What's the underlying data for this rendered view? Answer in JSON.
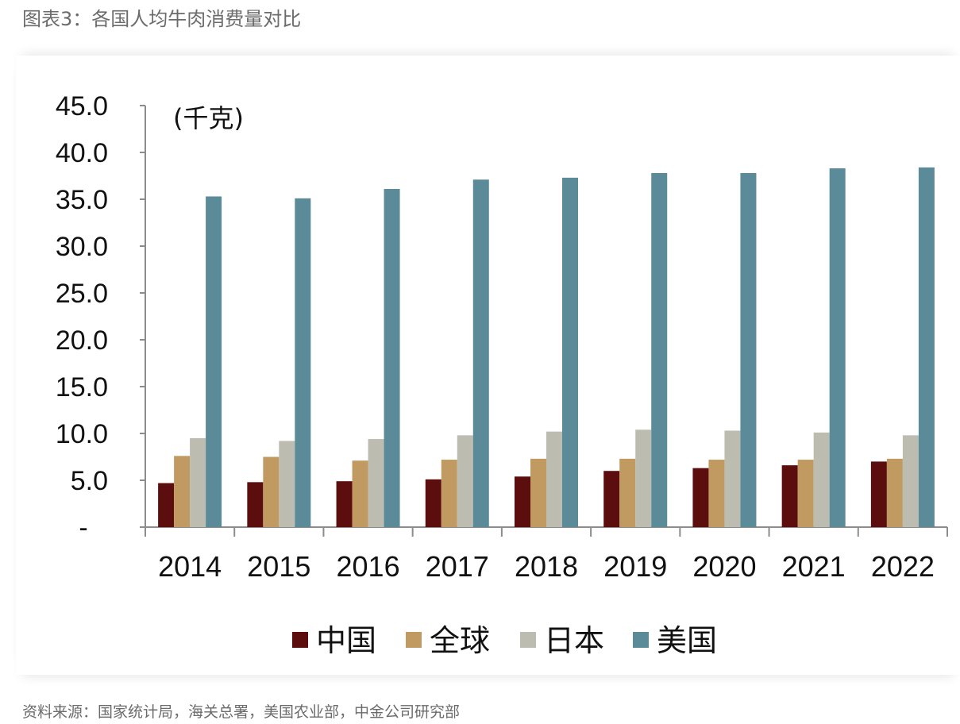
{
  "figure_title": "图表3：各国人均牛肉消费量对比",
  "source": "资料来源：国家统计局，海关总署，美国农业部，中金公司研究部",
  "chart_data": {
    "type": "bar",
    "title": "各国人均牛肉消费量对比",
    "unit_label": "(千克)",
    "xlabel": "",
    "ylabel": "",
    "categories": [
      "2014",
      "2015",
      "2016",
      "2017",
      "2018",
      "2019",
      "2020",
      "2021",
      "2022"
    ],
    "ylim": [
      0,
      45
    ],
    "yticks": [
      0,
      5,
      10,
      15,
      20,
      25,
      30,
      35,
      40,
      45
    ],
    "ytick_labels": [
      "-",
      "5.0",
      "10.0",
      "15.0",
      "20.0",
      "25.0",
      "30.0",
      "35.0",
      "40.0",
      "45.0"
    ],
    "grid": false,
    "legend_position": "bottom",
    "series": [
      {
        "name": "中国",
        "color": "#5c0e0e",
        "values": [
          4.7,
          4.8,
          4.9,
          5.1,
          5.4,
          6.0,
          6.3,
          6.6,
          7.0
        ]
      },
      {
        "name": "全球",
        "color": "#c19a62",
        "values": [
          7.6,
          7.5,
          7.1,
          7.2,
          7.3,
          7.3,
          7.2,
          7.2,
          7.3
        ]
      },
      {
        "name": "日本",
        "color": "#bcbcb0",
        "values": [
          9.5,
          9.2,
          9.4,
          9.8,
          10.2,
          10.4,
          10.3,
          10.1,
          9.8
        ]
      },
      {
        "name": "美国",
        "color": "#5b8a99",
        "values": [
          35.3,
          35.1,
          36.1,
          37.1,
          37.3,
          37.8,
          37.8,
          38.3,
          38.4
        ]
      }
    ]
  }
}
